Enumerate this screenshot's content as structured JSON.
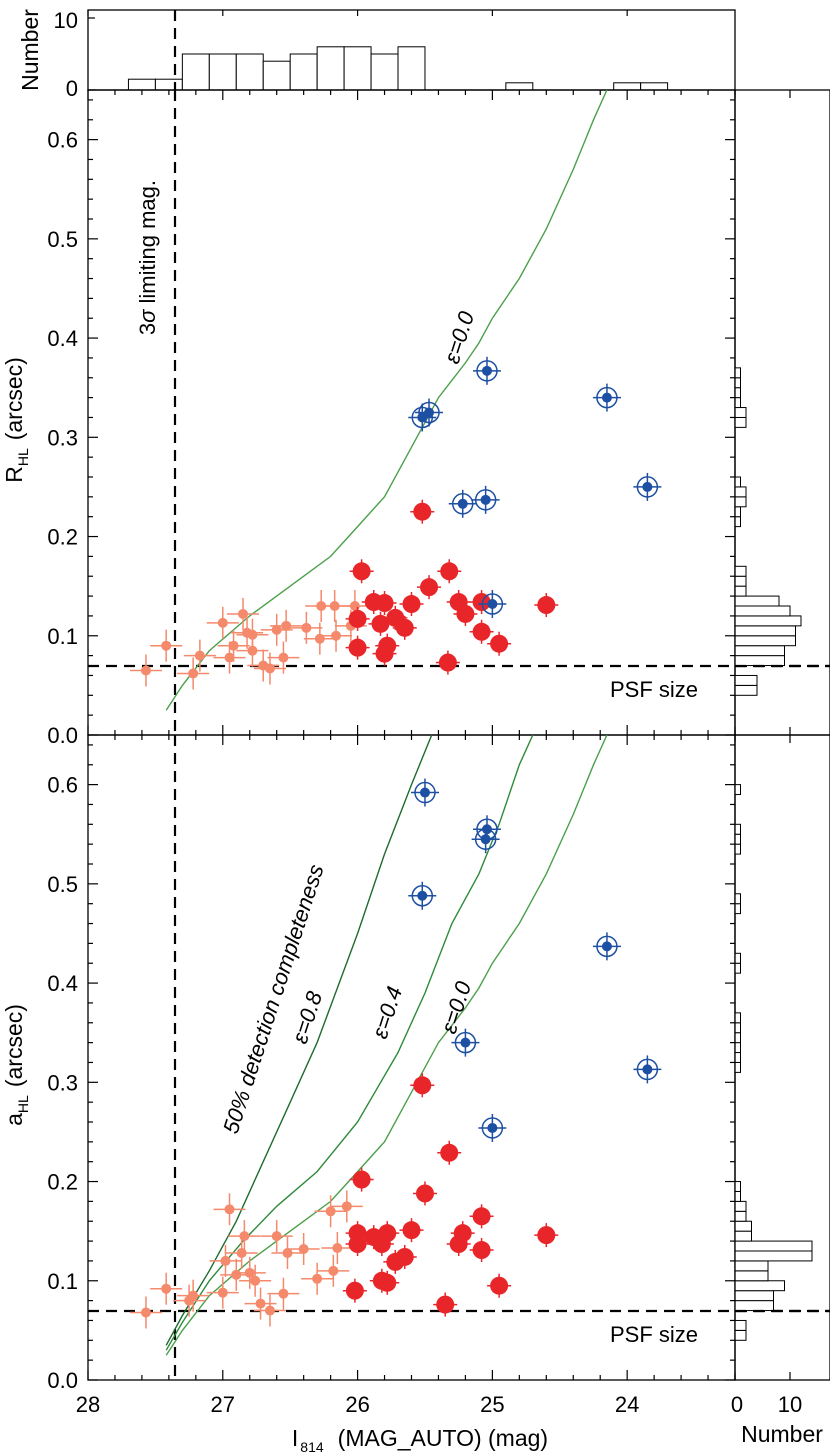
{
  "chart_data": [
    {
      "panel": "top-histogram",
      "type": "bar",
      "ylabel": "Number",
      "ylim": [
        0,
        10
      ],
      "yticks": [
        "0",
        "10"
      ],
      "bin_edges": [
        27.9,
        27.7,
        27.5,
        27.3,
        27.1,
        26.9,
        26.7,
        26.5,
        26.3,
        26.1,
        25.9,
        25.7,
        25.5,
        25.3,
        25.1,
        24.9,
        24.7,
        24.5,
        24.3,
        24.1,
        23.9,
        23.7,
        23.5,
        23.3
      ],
      "counts": [
        0,
        1.5,
        1.5,
        5,
        5,
        5,
        4,
        5,
        6,
        6,
        5,
        6,
        0,
        0,
        0,
        1,
        0,
        0,
        0,
        1,
        1,
        0,
        0
      ]
    },
    {
      "panel": "top-scatter",
      "type": "scatter",
      "xlabel": "",
      "ylabel": "R",
      "ylabel_sub": "HL",
      "ylabel_unit": "(arcsec)",
      "xlim": [
        28,
        23.2
      ],
      "ylim": [
        0,
        0.65
      ],
      "yticks": [
        "0.0",
        "0.1",
        "0.2",
        "0.3",
        "0.4",
        "0.5",
        "0.6"
      ],
      "annotations": {
        "limit_prefix": "3",
        "limit_sigma": "σ",
        "limit_suffix": " limiting mag.",
        "psf": "PSF size"
      },
      "reference_lines": {
        "limiting_mag": 27.4,
        "psf_size": 0.07
      },
      "series": [
        {
          "color": "#f4896b",
          "points": [
            [
              27.57,
              0.065
            ],
            [
              27.42,
              0.09
            ],
            [
              27.22,
              0.062
            ],
            [
              27.17,
              0.08
            ],
            [
              27.0,
              0.113
            ],
            [
              26.95,
              0.078
            ],
            [
              26.92,
              0.09
            ],
            [
              26.85,
              0.122
            ],
            [
              26.82,
              0.103
            ],
            [
              26.78,
              0.085
            ],
            [
              26.78,
              0.101
            ],
            [
              26.7,
              0.07
            ],
            [
              26.65,
              0.067
            ],
            [
              26.6,
              0.106
            ],
            [
              26.55,
              0.078
            ],
            [
              26.53,
              0.11
            ],
            [
              26.38,
              0.108
            ],
            [
              26.28,
              0.097
            ],
            [
              26.17,
              0.13
            ],
            [
              26.16,
              0.1
            ],
            [
              26.05,
              0.11
            ],
            [
              26.02,
              0.13
            ],
            [
              26.27,
              0.13
            ]
          ]
        },
        {
          "color": "#e8262a",
          "points": [
            [
              25.97,
              0.165
            ],
            [
              25.52,
              0.225
            ],
            [
              25.32,
              0.165
            ],
            [
              25.47,
              0.149
            ],
            [
              25.6,
              0.132
            ],
            [
              25.25,
              0.134
            ],
            [
              25.08,
              0.134
            ],
            [
              25.2,
              0.122
            ],
            [
              25.08,
              0.104
            ],
            [
              24.95,
              0.092
            ],
            [
              25.33,
              0.073
            ],
            [
              24.6,
              0.131
            ],
            [
              26.0,
              0.088
            ],
            [
              26.0,
              0.117
            ],
            [
              25.88,
              0.134
            ],
            [
              25.8,
              0.133
            ],
            [
              25.72,
              0.118
            ],
            [
              25.83,
              0.112
            ],
            [
              25.78,
              0.09
            ],
            [
              25.8,
              0.082
            ],
            [
              25.65,
              0.108
            ]
          ]
        },
        {
          "color": "#1d4fa3",
          "points": [
            [
              25.52,
              0.32
            ],
            [
              25.47,
              0.325
            ],
            [
              25.04,
              0.367
            ],
            [
              24.15,
              0.34
            ],
            [
              23.85,
              0.25
            ],
            [
              25.22,
              0.233
            ],
            [
              25.05,
              0.237
            ],
            [
              25.0,
              0.132
            ]
          ]
        }
      ],
      "curves": [
        {
          "label": "ε=0.0",
          "points": [
            [
              27.42,
              0.025
            ],
            [
              27.3,
              0.05
            ],
            [
              27.1,
              0.085
            ],
            [
              26.8,
              0.12
            ],
            [
              26.4,
              0.16
            ],
            [
              26.2,
              0.18
            ],
            [
              26.0,
              0.21
            ],
            [
              25.8,
              0.24
            ],
            [
              25.6,
              0.29
            ],
            [
              25.4,
              0.34
            ],
            [
              25.2,
              0.375
            ],
            [
              25.1,
              0.395
            ],
            [
              25.0,
              0.42
            ],
            [
              24.8,
              0.46
            ],
            [
              24.6,
              0.51
            ],
            [
              24.4,
              0.57
            ],
            [
              24.25,
              0.62
            ],
            [
              24.15,
              0.65
            ]
          ]
        }
      ]
    },
    {
      "panel": "right-histogram-top",
      "type": "bar",
      "orientation": "horizontal",
      "xlabel": "Number",
      "bin_edges": [
        0.04,
        0.05,
        0.06,
        0.07,
        0.08,
        0.09,
        0.1,
        0.11,
        0.12,
        0.13,
        0.14,
        0.15,
        0.16,
        0.17,
        0.18,
        0.19,
        0.2,
        0.21,
        0.22,
        0.23,
        0.24,
        0.25,
        0.26,
        0.27,
        0.28,
        0.29,
        0.3,
        0.31,
        0.32,
        0.33,
        0.34,
        0.35,
        0.36,
        0.37
      ],
      "counts": [
        4,
        4,
        0,
        9,
        9,
        11,
        11,
        12,
        10,
        8,
        2,
        2,
        2,
        0,
        0,
        0,
        0,
        1,
        1,
        2,
        2,
        1,
        0,
        0,
        0,
        0,
        0,
        2,
        2,
        1,
        1,
        1,
        1
      ]
    },
    {
      "panel": "bottom-scatter",
      "type": "scatter",
      "xlabel": "I",
      "xlabel_sub": "814",
      "xlabel_rest": "(MAG_AUTO) (mag)",
      "ylabel": "a",
      "ylabel_sub": "HL",
      "ylabel_unit": "(arcsec)",
      "xlim": [
        28,
        23.2
      ],
      "ylim": [
        0,
        0.65
      ],
      "xticks": [
        "28",
        "27",
        "26",
        "25",
        "24"
      ],
      "yticks": [
        "0.0",
        "0.1",
        "0.2",
        "0.3",
        "0.4",
        "0.5",
        "0.6"
      ],
      "annotations": {
        "completeness": "50% detection completeness",
        "psf": "PSF size"
      },
      "reference_lines": {
        "limiting_mag": 27.4,
        "psf_size": 0.07
      },
      "series": [
        {
          "color": "#f4896b",
          "points": [
            [
              27.57,
              0.068
            ],
            [
              27.42,
              0.092
            ],
            [
              27.25,
              0.08
            ],
            [
              27.22,
              0.085
            ],
            [
              27.0,
              0.088
            ],
            [
              26.98,
              0.12
            ],
            [
              26.95,
              0.172
            ],
            [
              26.9,
              0.106
            ],
            [
              26.86,
              0.128
            ],
            [
              26.84,
              0.145
            ],
            [
              26.8,
              0.108
            ],
            [
              26.76,
              0.1
            ],
            [
              26.72,
              0.077
            ],
            [
              26.65,
              0.07
            ],
            [
              26.6,
              0.145
            ],
            [
              26.55,
              0.087
            ],
            [
              26.52,
              0.128
            ],
            [
              26.4,
              0.132
            ],
            [
              26.3,
              0.102
            ],
            [
              26.2,
              0.17
            ],
            [
              26.18,
              0.11
            ],
            [
              26.15,
              0.133
            ],
            [
              26.08,
              0.175
            ]
          ]
        },
        {
          "color": "#e8262a",
          "points": [
            [
              25.52,
              0.297
            ],
            [
              25.97,
              0.202
            ],
            [
              25.32,
              0.229
            ],
            [
              25.5,
              0.188
            ],
            [
              25.08,
              0.165
            ],
            [
              25.6,
              0.151
            ],
            [
              25.25,
              0.137
            ],
            [
              25.22,
              0.148
            ],
            [
              25.08,
              0.131
            ],
            [
              24.95,
              0.095
            ],
            [
              25.35,
              0.076
            ],
            [
              24.6,
              0.146
            ],
            [
              26.02,
              0.09
            ],
            [
              26.0,
              0.148
            ],
            [
              26.0,
              0.137
            ],
            [
              25.88,
              0.144
            ],
            [
              25.82,
              0.137
            ],
            [
              25.78,
              0.148
            ],
            [
              25.72,
              0.119
            ],
            [
              25.82,
              0.1
            ],
            [
              25.78,
              0.098
            ],
            [
              25.65,
              0.124
            ]
          ]
        },
        {
          "color": "#1d4fa3",
          "points": [
            [
              25.5,
              0.592
            ],
            [
              25.04,
              0.555
            ],
            [
              25.05,
              0.545
            ],
            [
              25.52,
              0.488
            ],
            [
              24.15,
              0.437
            ],
            [
              25.2,
              0.34
            ],
            [
              23.85,
              0.313
            ],
            [
              25.0,
              0.254
            ]
          ]
        }
      ],
      "curves": [
        {
          "label": "ε=0.8",
          "points": [
            [
              27.42,
              0.035
            ],
            [
              27.3,
              0.065
            ],
            [
              27.1,
              0.11
            ],
            [
              26.9,
              0.16
            ],
            [
              26.7,
              0.22
            ],
            [
              26.5,
              0.28
            ],
            [
              26.3,
              0.34
            ],
            [
              26.0,
              0.45
            ],
            [
              25.8,
              0.53
            ],
            [
              25.6,
              0.6
            ],
            [
              25.45,
              0.65
            ]
          ]
        },
        {
          "label": "ε=0.4",
          "points": [
            [
              27.42,
              0.03
            ],
            [
              27.3,
              0.058
            ],
            [
              27.1,
              0.1
            ],
            [
              26.85,
              0.14
            ],
            [
              26.6,
              0.175
            ],
            [
              26.3,
              0.21
            ],
            [
              26.0,
              0.26
            ],
            [
              25.7,
              0.33
            ],
            [
              25.5,
              0.39
            ],
            [
              25.3,
              0.46
            ],
            [
              25.1,
              0.51
            ],
            [
              24.95,
              0.56
            ],
            [
              24.8,
              0.62
            ],
            [
              24.7,
              0.65
            ]
          ]
        },
        {
          "label": "ε=0.0",
          "points": [
            [
              27.42,
              0.025
            ],
            [
              27.3,
              0.05
            ],
            [
              27.1,
              0.085
            ],
            [
              26.8,
              0.12
            ],
            [
              26.4,
              0.16
            ],
            [
              26.2,
              0.18
            ],
            [
              26.0,
              0.21
            ],
            [
              25.8,
              0.24
            ],
            [
              25.6,
              0.29
            ],
            [
              25.4,
              0.34
            ],
            [
              25.2,
              0.375
            ],
            [
              25.1,
              0.395
            ],
            [
              25.0,
              0.42
            ],
            [
              24.8,
              0.46
            ],
            [
              24.6,
              0.51
            ],
            [
              24.4,
              0.57
            ],
            [
              24.25,
              0.62
            ],
            [
              24.15,
              0.65
            ]
          ]
        }
      ]
    },
    {
      "panel": "right-histogram-bottom",
      "type": "bar",
      "orientation": "horizontal",
      "xlabel": "Number",
      "xticks": [
        "0",
        "10"
      ],
      "bin_edges": [
        0.04,
        0.05,
        0.06,
        0.07,
        0.08,
        0.09,
        0.1,
        0.11,
        0.12,
        0.13,
        0.14,
        0.15,
        0.16,
        0.17,
        0.18,
        0.19,
        0.2,
        0.21,
        0.22,
        0.23,
        0.24,
        0.25,
        0.26,
        0.27,
        0.28,
        0.29,
        0.3,
        0.31,
        0.32,
        0.33,
        0.34,
        0.35,
        0.36,
        0.37,
        0.38,
        0.39,
        0.4,
        0.41,
        0.42,
        0.43,
        0.44,
        0.45,
        0.46,
        0.47,
        0.48,
        0.49,
        0.5,
        0.51,
        0.52,
        0.53,
        0.54,
        0.55,
        0.56,
        0.57,
        0.58,
        0.59,
        0.6
      ],
      "counts": [
        2,
        2,
        0,
        7,
        7,
        9,
        6,
        6,
        14,
        14,
        3,
        3,
        2,
        2,
        1,
        1,
        0,
        0,
        0,
        0,
        0,
        0,
        0,
        0,
        0,
        0,
        0,
        1,
        1,
        1,
        1,
        1,
        1,
        0,
        0,
        0,
        0,
        1,
        1,
        0,
        0,
        0,
        0,
        1,
        1,
        0,
        0,
        0,
        0,
        1,
        1,
        1,
        0,
        0,
        0,
        1
      ]
    }
  ]
}
